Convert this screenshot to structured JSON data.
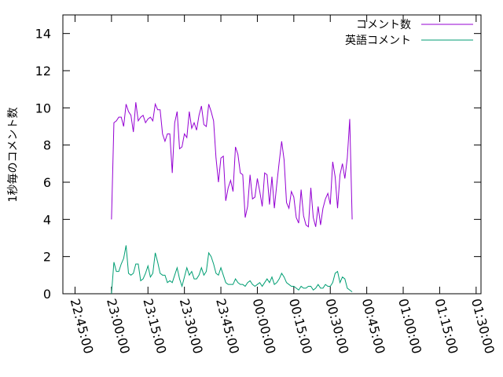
{
  "chart_data": {
    "type": "line",
    "title": "",
    "xlabel": "",
    "ylabel": "1秒毎のコメント数",
    "ylim": [
      0,
      15
    ],
    "xlim": [
      "22:40:00",
      "01:32:00"
    ],
    "x_tick_labels": [
      "22:45:00",
      "23:00:00",
      "23:15:00",
      "23:30:00",
      "23:45:00",
      "00:00:00",
      "00:15:00",
      "00:30:00",
      "00:45:00",
      "01:00:00",
      "01:15:00",
      "01:30:00"
    ],
    "y_ticks": [
      0,
      2,
      4,
      6,
      8,
      10,
      12,
      14
    ],
    "grid": false,
    "legend_position": "top-right",
    "x_start": "23:00:00",
    "x_step_minutes": 1,
    "series": [
      {
        "name": "コメント数",
        "color": "#9400d3",
        "values": [
          4.0,
          9.2,
          9.3,
          9.5,
          9.5,
          9.0,
          10.2,
          9.8,
          9.6,
          8.7,
          10.3,
          9.3,
          9.5,
          9.6,
          9.2,
          9.4,
          9.5,
          9.3,
          10.2,
          9.9,
          9.9,
          8.6,
          8.2,
          8.6,
          8.6,
          6.5,
          9.2,
          9.8,
          7.8,
          7.9,
          8.6,
          8.4,
          9.8,
          8.9,
          9.2,
          8.8,
          9.6,
          10.1,
          9.1,
          9.0,
          10.2,
          9.8,
          9.3,
          7.3,
          6.0,
          7.3,
          7.4,
          5.0,
          5.7,
          6.1,
          5.5,
          7.9,
          7.5,
          6.5,
          6.4,
          4.1,
          4.7,
          6.4,
          5.1,
          5.2,
          6.2,
          5.5,
          4.7,
          6.5,
          6.4,
          4.8,
          6.3,
          4.6,
          5.9,
          7.1,
          8.2,
          7.2,
          4.9,
          4.6,
          5.5,
          5.2,
          4.1,
          3.8,
          5.6,
          4.2,
          3.7,
          3.6,
          5.7,
          4.1,
          3.6,
          4.7,
          3.7,
          4.6,
          5.1,
          5.4,
          4.8,
          7.1,
          6.3,
          4.6,
          6.4,
          7.0,
          6.2,
          7.3,
          9.4,
          4.0
        ]
      },
      {
        "name": "英語コメント",
        "color": "#009e73",
        "values": [
          0.0,
          1.7,
          1.2,
          1.2,
          1.6,
          1.9,
          2.6,
          1.1,
          1.0,
          1.1,
          1.6,
          1.6,
          0.7,
          0.8,
          1.1,
          1.5,
          0.9,
          1.1,
          2.2,
          1.7,
          1.1,
          1.0,
          1.0,
          0.6,
          0.7,
          0.6,
          1.0,
          1.4,
          0.8,
          0.4,
          0.9,
          1.4,
          1.0,
          1.2,
          0.8,
          0.8,
          1.0,
          1.4,
          1.0,
          1.2,
          2.2,
          2.0,
          1.6,
          1.1,
          1.0,
          1.4,
          1.0,
          0.6,
          0.5,
          0.5,
          0.5,
          0.8,
          0.6,
          0.5,
          0.5,
          0.4,
          0.6,
          0.7,
          0.5,
          0.4,
          0.5,
          0.6,
          0.4,
          0.6,
          0.8,
          0.6,
          0.9,
          0.5,
          0.6,
          0.8,
          1.1,
          0.9,
          0.6,
          0.5,
          0.4,
          0.4,
          0.3,
          0.2,
          0.4,
          0.3,
          0.3,
          0.4,
          0.4,
          0.2,
          0.3,
          0.5,
          0.3,
          0.3,
          0.5,
          0.4,
          0.4,
          0.6,
          1.1,
          1.2,
          0.6,
          0.9,
          0.8,
          0.3,
          0.2,
          0.1
        ]
      }
    ]
  }
}
